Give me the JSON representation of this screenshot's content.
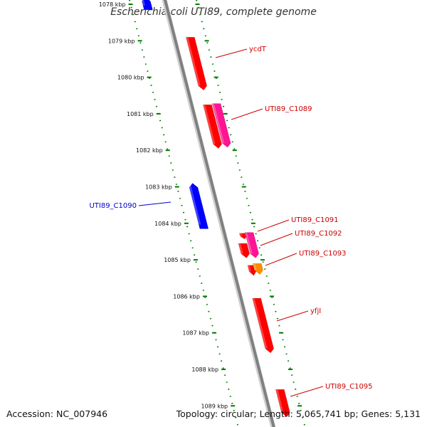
{
  "title": "Escherichia coli UTI89, complete genome",
  "accession_label": "Accession: NC_007946",
  "summary_label": "Topology: circular; Length: 5,065,741 bp; Genes: 5,131",
  "colors": {
    "backbone": "#808080",
    "tick_dots": "#007a00",
    "forward_label": "#cc0000",
    "reverse_label": "#0000cc",
    "red_gene": "#ff0000",
    "pink_gene": "#ff1493",
    "blue_gene": "#0000ff",
    "orange_gene": "#ff8c00"
  },
  "ticks": [
    {
      "label": "1078 kbp",
      "kbp": 1078
    },
    {
      "label": "1079 kbp",
      "kbp": 1079
    },
    {
      "label": "1080 kbp",
      "kbp": 1080
    },
    {
      "label": "1081 kbp",
      "kbp": 1081
    },
    {
      "label": "1082 kbp",
      "kbp": 1082
    },
    {
      "label": "1083 kbp",
      "kbp": 1083
    },
    {
      "label": "1084 kbp",
      "kbp": 1084
    },
    {
      "label": "1085 kbp",
      "kbp": 1085
    },
    {
      "label": "1086 kbp",
      "kbp": 1086
    },
    {
      "label": "1087 kbp",
      "kbp": 1087
    },
    {
      "label": "1088 kbp",
      "kbp": 1088
    },
    {
      "label": "1089 kbp",
      "kbp": 1089
    }
  ],
  "genes": [
    {
      "id": "g0",
      "label": "",
      "strand": "reverse",
      "color": "blue",
      "start": 1077.8,
      "end": 1078.15
    },
    {
      "id": "g1",
      "label": "ycdT",
      "strand": "forward",
      "color": "red",
      "start": 1078.9,
      "end": 1080.35
    },
    {
      "id": "g2",
      "label": "",
      "strand": "forward",
      "color": "red",
      "start": 1080.75,
      "end": 1081.95
    },
    {
      "id": "g3",
      "label": "UTI89_C1089",
      "strand": "forward",
      "color": "pink",
      "start": 1080.72,
      "end": 1081.92
    },
    {
      "id": "g4",
      "label": "UTI89_C1090",
      "strand": "reverse",
      "color": "blue",
      "start": 1082.9,
      "end": 1084.15
    },
    {
      "id": "g5",
      "label": "UTI89_C1091",
      "strand": "forward",
      "color": "red",
      "start": 1084.27,
      "end": 1084.43
    },
    {
      "id": "g6",
      "label": "UTI89_C1092",
      "strand": "forward",
      "color": "pink",
      "start": 1084.25,
      "end": 1084.95
    },
    {
      "id": "g7",
      "label": "",
      "strand": "forward",
      "color": "red",
      "start": 1084.55,
      "end": 1084.95
    },
    {
      "id": "g8",
      "label": "",
      "strand": "forward",
      "color": "red",
      "start": 1085.15,
      "end": 1085.43
    },
    {
      "id": "g9",
      "label": "UTI89_C1093",
      "strand": "forward",
      "color": "orange",
      "start": 1085.1,
      "end": 1085.4
    },
    {
      "id": "g10",
      "label": "yfjI",
      "strand": "forward",
      "color": "red",
      "start": 1086.05,
      "end": 1087.55
    },
    {
      "id": "g11",
      "label": "UTI89_C1095",
      "strand": "forward",
      "color": "red",
      "start": 1088.55,
      "end": 1089.3
    }
  ]
}
